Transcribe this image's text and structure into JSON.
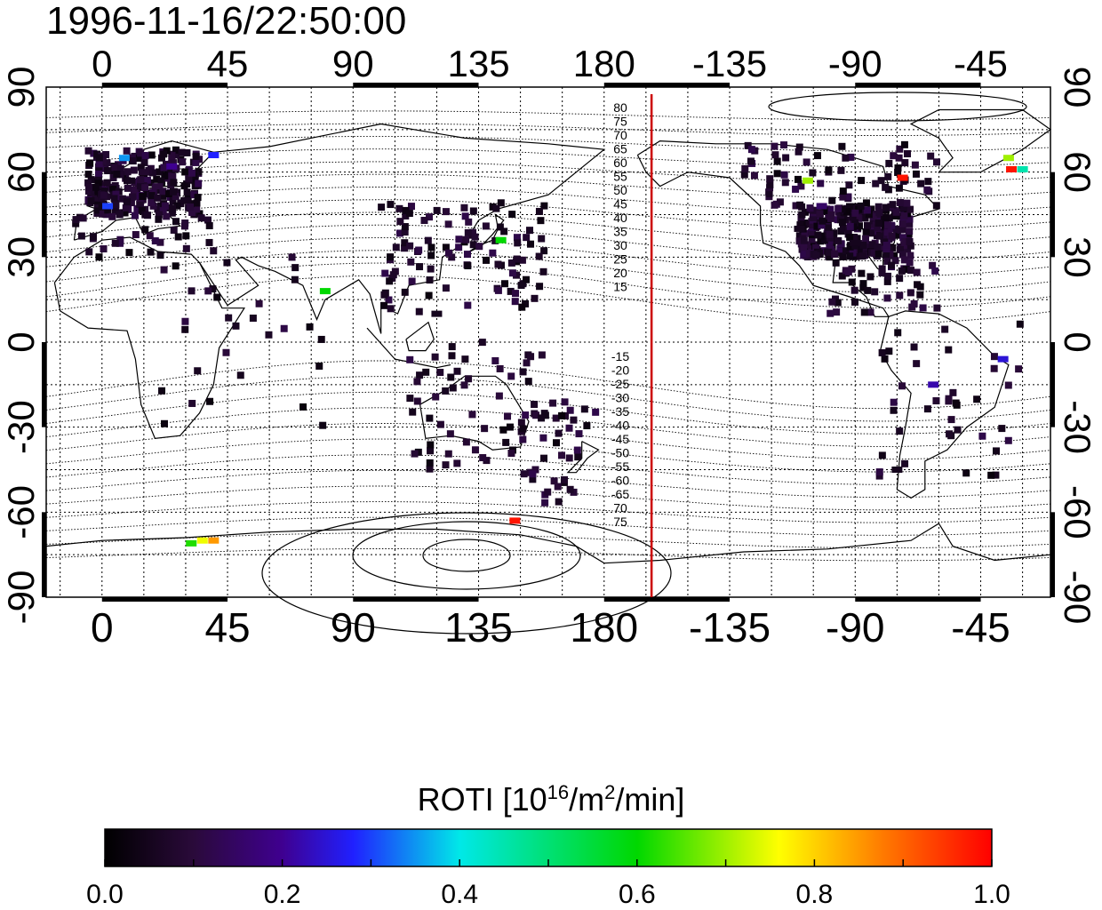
{
  "title": "1996-11-16/22:50:00",
  "map": {
    "top_lon_labels": [
      "0",
      "45",
      "90",
      "135",
      "180",
      "-135",
      "-90",
      "-45"
    ],
    "bottom_lon_labels": [
      "0",
      "45",
      "90",
      "135",
      "180",
      "-135",
      "-90",
      "-45"
    ],
    "left_lat_labels": [
      "90",
      "60",
      "30",
      "0",
      "-30",
      "-60",
      "-90"
    ],
    "right_lat_labels": [
      "90",
      "60",
      "30",
      "0",
      "-30",
      "-60",
      "-90"
    ],
    "contour_labels_north": [
      "80",
      "75",
      "70",
      "65",
      "60",
      "55",
      "50",
      "45",
      "40",
      "35",
      "30",
      "25",
      "20",
      "15"
    ],
    "contour_labels_south": [
      "-15",
      "-20",
      "-25",
      "-30",
      "-35",
      "-40",
      "-45",
      "-50",
      "-55",
      "-60",
      "-65",
      "70",
      "75"
    ],
    "terminator_color": "#cc0000",
    "terminator_lon": 197
  },
  "colorbar": {
    "title_main": "ROTI  [10",
    "title_sup1": "16",
    "title_mid": "/m",
    "title_sup2": "2",
    "title_end": "/min]",
    "tick_labels": [
      "0.0",
      "0.2",
      "0.4",
      "0.6",
      "0.8",
      "1.0"
    ],
    "min": 0.0,
    "max": 1.0
  },
  "chart_data": {
    "type": "heatmap",
    "title": "1996-11-16/22:50:00",
    "xlabel": "",
    "ylabel": "",
    "xlim": [
      -20,
      340
    ],
    "ylim": [
      -90,
      90
    ],
    "color_label": "ROTI [10^16/m^2/min]",
    "color_range": [
      0.0,
      1.0
    ],
    "points": [
      {
        "lon": 8,
        "lat": 65,
        "v": 0.35
      },
      {
        "lon": 10,
        "lat": 57,
        "v": 0.05
      },
      {
        "lon": 15,
        "lat": 60,
        "v": 0.08
      },
      {
        "lon": 20,
        "lat": 55,
        "v": 0.1
      },
      {
        "lon": 25,
        "lat": 62,
        "v": 0.2
      },
      {
        "lon": 30,
        "lat": 50,
        "v": 0.05
      },
      {
        "lon": 2,
        "lat": 48,
        "v": 0.3
      },
      {
        "lon": 40,
        "lat": 66,
        "v": 0.28
      },
      {
        "lon": 80,
        "lat": 18,
        "v": 0.6
      },
      {
        "lon": 143,
        "lat": 36,
        "v": 0.6
      },
      {
        "lon": 148,
        "lat": -63,
        "v": 0.98
      },
      {
        "lon": 36,
        "lat": -70,
        "v": 0.75
      },
      {
        "lon": 32,
        "lat": -71,
        "v": 0.62
      },
      {
        "lon": 40,
        "lat": -70,
        "v": 0.85
      },
      {
        "lon": 253,
        "lat": 57,
        "v": 0.7
      },
      {
        "lon": 287,
        "lat": 58,
        "v": 0.98
      },
      {
        "lon": 325,
        "lat": 65,
        "v": 0.7
      },
      {
        "lon": 326,
        "lat": 61,
        "v": 0.98
      },
      {
        "lon": 330,
        "lat": 61,
        "v": 0.45
      },
      {
        "lon": 323,
        "lat": -6,
        "v": 0.25
      },
      {
        "lon": 298,
        "lat": -15,
        "v": 0.22
      },
      {
        "lon": 258,
        "lat": 48,
        "v": 0.15
      },
      {
        "lon": 120,
        "lat": 10,
        "v": 0.05
      },
      {
        "lon": 250,
        "lat": 40,
        "v": 0.05
      },
      {
        "lon": 270,
        "lat": 35,
        "v": 0.05
      },
      {
        "lon": 285,
        "lat": -45,
        "v": 0.05
      }
    ]
  }
}
